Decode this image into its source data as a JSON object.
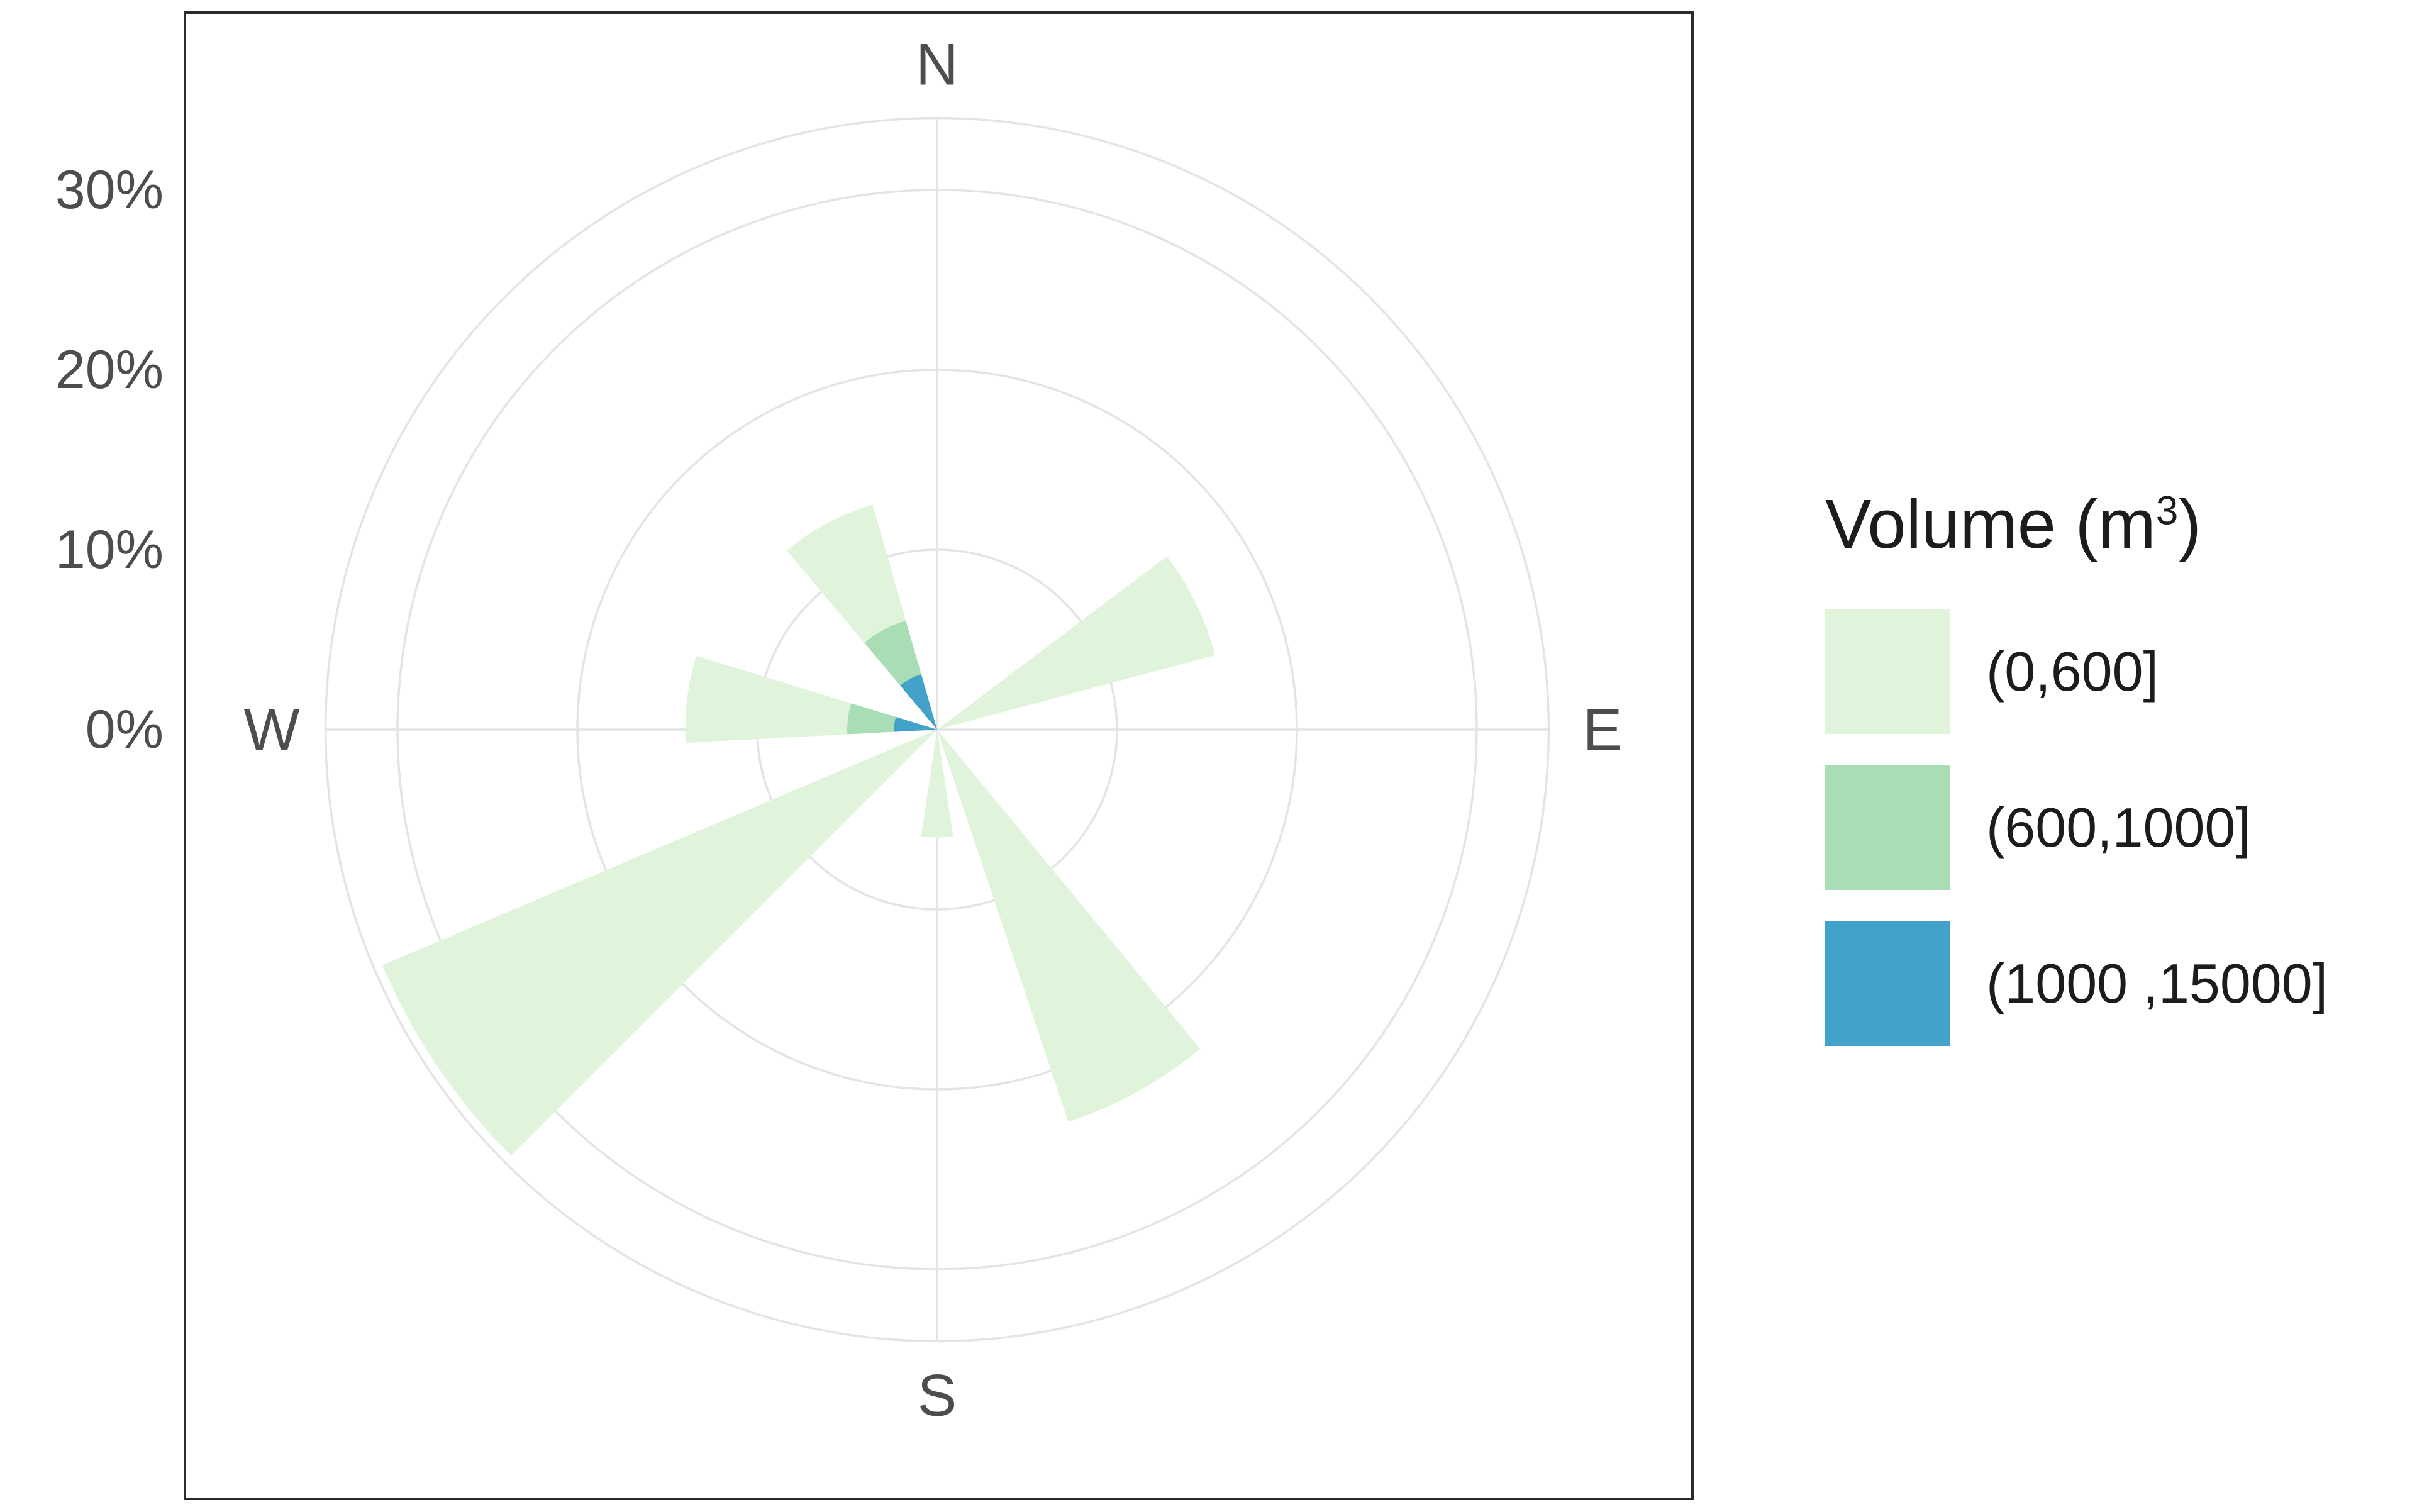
{
  "figure": {
    "background": "#ffffff",
    "panel_border_color": "#2b2b2b",
    "gridline_color": "#e4e4e4",
    "text_color": "#4d4d4d"
  },
  "legend": {
    "title": {
      "prefix": "Volume (m",
      "sup": "3",
      "suffix": ")"
    },
    "entries": [
      {
        "label": "(0,600]",
        "color": "#e0f3db"
      },
      {
        "label": "(600,1000]",
        "color": "#a8ddb5"
      },
      {
        "label": "(1000 ,15000]",
        "color": "#43a2ca"
      }
    ]
  },
  "chart_data": {
    "type": "polar-stacked-rose",
    "title": "",
    "radial_axis": {
      "tick_labels": [
        "0%",
        "10%",
        "20%",
        "30%"
      ],
      "tick_values_pct": [
        0,
        10,
        20,
        30
      ],
      "max_pct": 34,
      "gridline_circles_pct": [
        10,
        20,
        30,
        34
      ],
      "grid": "on"
    },
    "angular_axis": {
      "compass_labels": [
        "N",
        "E",
        "S",
        "W"
      ],
      "compass_bearings_deg": [
        0,
        90,
        180,
        270
      ]
    },
    "bins": [
      "(0,600]",
      "(600,1000]",
      "(1000 ,15000]"
    ],
    "bin_colors": [
      "#e0f3db",
      "#a8ddb5",
      "#43a2ca"
    ],
    "stack_order_from_center": [
      "(1000 ,15000]",
      "(600,1000]",
      "(0,600]"
    ],
    "legend_position": "right",
    "petals": [
      {
        "direction": "NNW",
        "bearing_deg": 332,
        "width_deg": 24,
        "pct": {
          "(0,600]": 6.7,
          "(600,1000]": 3.1,
          "(1000 ,15000]": 3.2
        }
      },
      {
        "direction": "ENE",
        "bearing_deg": 64,
        "width_deg": 22,
        "pct": {
          "(0,600]": 16,
          "(600,1000]": 0,
          "(1000 ,15000]": 0
        }
      },
      {
        "direction": "W",
        "bearing_deg": 277,
        "width_deg": 20,
        "pct": {
          "(0,600]": 9,
          "(600,1000]": 2.6,
          "(1000 ,15000]": 2.4
        }
      },
      {
        "direction": "WSW",
        "bearing_deg": 236,
        "width_deg": 22,
        "pct": {
          "(0,600]": 33.5,
          "(600,1000]": 0,
          "(1000 ,15000]": 0
        }
      },
      {
        "direction": "SSE",
        "bearing_deg": 151,
        "width_deg": 21,
        "pct": {
          "(0,600]": 23,
          "(600,1000]": 0,
          "(1000 ,15000]": 0
        }
      },
      {
        "direction": "S",
        "bearing_deg": 180,
        "width_deg": 17,
        "pct": {
          "(0,600]": 6,
          "(600,1000]": 0,
          "(1000 ,15000]": 0
        }
      }
    ]
  }
}
